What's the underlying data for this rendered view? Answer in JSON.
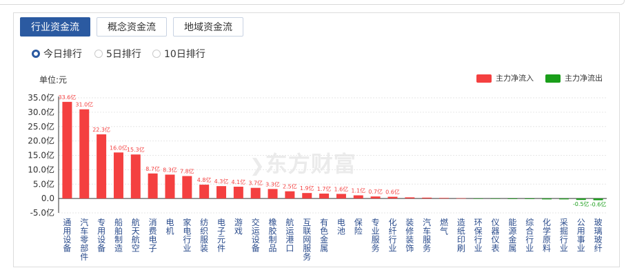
{
  "tabs": [
    {
      "label": "行业资金流",
      "active": true
    },
    {
      "label": "概念资金流",
      "active": false
    },
    {
      "label": "地域资金流",
      "active": false
    }
  ],
  "ranking": [
    {
      "label": "今日排行",
      "selected": true
    },
    {
      "label": "5日排行",
      "selected": false
    },
    {
      "label": "10日排行",
      "selected": false
    }
  ],
  "unit_label": "单位:元",
  "legend": [
    {
      "label": "主力净流入",
      "color": "#f44040"
    },
    {
      "label": "主力净流出",
      "color": "#1a9e1a"
    }
  ],
  "watermark": "东方财富",
  "chart_data": {
    "type": "bar",
    "y_ticks": [
      "35.0亿",
      "30.0亿",
      "25.0亿",
      "20.0亿",
      "15.0亿",
      "10.0亿",
      "5.0亿",
      "0.0",
      "-5.0亿"
    ],
    "ylim": [
      -5,
      35
    ],
    "grid": true,
    "unit": "亿",
    "categories": [
      "通用设备",
      "汽车零部件",
      "专用设备",
      "船舶制造",
      "航天航空",
      "消费电子",
      "电机",
      "家电行业",
      "纺织服装",
      "电子元件",
      "游戏",
      "交运设备",
      "橡胶制品",
      "航运港口",
      "互联网服务",
      "有色金属",
      "电池",
      "保险",
      "专业服务",
      "化纤行业",
      "装修装饰",
      "汽车服务",
      "燃气",
      "造纸印刷",
      "环保行业",
      "仪器仪表",
      "能源金属",
      "综合行业",
      "化学原料",
      "采掘行业",
      "公用事业",
      "玻璃玻纤"
    ],
    "values": [
      33.6,
      31.0,
      22.3,
      16.0,
      15.3,
      8.7,
      8.3,
      7.8,
      4.8,
      4.3,
      4.1,
      3.7,
      3.3,
      2.5,
      1.9,
      1.7,
      1.6,
      1.1,
      0.7,
      0.6,
      0.4,
      0.3,
      0.2,
      0.1,
      -0.1,
      -0.1,
      -0.2,
      -0.2,
      -0.3,
      -0.3,
      -0.5,
      -0.6
    ],
    "data_labels": [
      "33.6亿",
      "31.0亿",
      "22.3亿",
      "16.0亿",
      "15.3亿",
      "8.7亿",
      "8.3亿",
      "7.8亿",
      "4.8亿",
      "4.3亿",
      "4.1亿",
      "3.7亿",
      "3.3亿",
      "2.5亿",
      "1.9亿",
      "1.7亿",
      "1.6亿",
      "1.1亿",
      "0.7亿",
      "0.6亿",
      "",
      "",
      "",
      "",
      "",
      "",
      "",
      "",
      "",
      "",
      "-0.5亿",
      "-0.6亿"
    ],
    "positive_color": "#f44040",
    "negative_color": "#1a9e1a"
  }
}
